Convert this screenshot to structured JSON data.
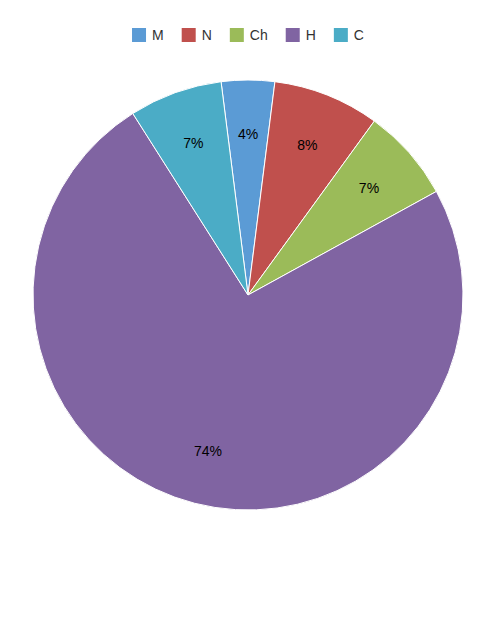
{
  "chart_data": {
    "type": "pie",
    "categories": [
      "M",
      "N",
      "Ch",
      "H",
      "C"
    ],
    "values": [
      4,
      8,
      7,
      74,
      7
    ],
    "value_labels": [
      "4%",
      "8%",
      "7%",
      "74%",
      "7%"
    ],
    "colors": [
      "#5b9bd5",
      "#c0504d",
      "#9bbb59",
      "#8064a2",
      "#4bacc6"
    ],
    "data_labels": true,
    "legend": "top"
  }
}
